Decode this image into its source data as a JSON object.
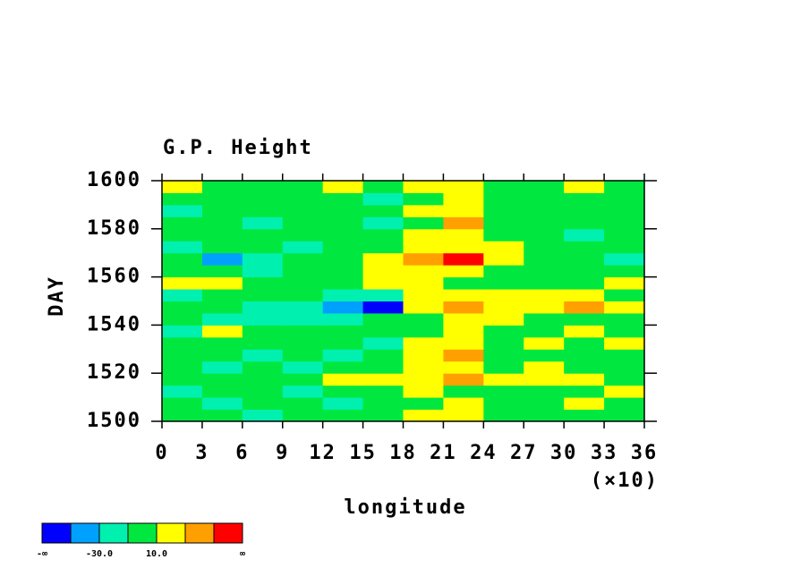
{
  "chart_data": {
    "type": "heatmap",
    "title": "G.P. Height",
    "x_label": "longitude",
    "y_label": "DAY",
    "x_multiplier": "(×10)",
    "xlim": [
      0,
      360
    ],
    "ylim": [
      1500,
      1600
    ],
    "xticks": [
      0,
      {
        "value": 30,
        "label": "3"
      },
      {
        "value": 60,
        "label": "6"
      },
      {
        "value": 90,
        "label": "9"
      },
      {
        "value": 120,
        "label": "12"
      },
      {
        "value": 150,
        "label": "15"
      },
      {
        "value": 180,
        "label": "18"
      },
      {
        "value": 210,
        "label": "21"
      },
      {
        "value": 240,
        "label": "24"
      },
      {
        "value": 270,
        "label": "27"
      },
      {
        "value": 300,
        "label": "30"
      },
      {
        "value": 330,
        "label": "33"
      },
      {
        "value": 360,
        "label": "36"
      }
    ],
    "yticks": [
      1500,
      1520,
      1540,
      1560,
      1580,
      1600
    ],
    "x": [
      15,
      45,
      75,
      105,
      135,
      165,
      195,
      225,
      255,
      285,
      315,
      345
    ],
    "y": [
      1502.5,
      1507.5,
      1512.5,
      1517.5,
      1522.5,
      1527.5,
      1532.5,
      1537.5,
      1542.5,
      1547.5,
      1552.5,
      1557.5,
      1562.5,
      1567.5,
      1572.5,
      1577.5,
      1582.5,
      1587.5,
      1592.5,
      1597.5
    ],
    "z": [
      [
        0,
        0,
        -20,
        0,
        0,
        0,
        20,
        20,
        0,
        0,
        0,
        0
      ],
      [
        0,
        -20,
        0,
        0,
        -20,
        0,
        0,
        20,
        0,
        0,
        20,
        0
      ],
      [
        -20,
        0,
        0,
        -20,
        0,
        0,
        20,
        0,
        0,
        0,
        0,
        20
      ],
      [
        0,
        0,
        0,
        0,
        20,
        20,
        20,
        40,
        20,
        20,
        20,
        0
      ],
      [
        0,
        -20,
        0,
        -20,
        0,
        0,
        20,
        20,
        0,
        20,
        0,
        0
      ],
      [
        0,
        0,
        -20,
        0,
        -20,
        0,
        20,
        40,
        0,
        0,
        0,
        0
      ],
      [
        0,
        0,
        0,
        0,
        0,
        -20,
        20,
        20,
        0,
        20,
        0,
        20
      ],
      [
        -20,
        20,
        0,
        0,
        0,
        0,
        0,
        20,
        0,
        0,
        20,
        0
      ],
      [
        0,
        -20,
        -20,
        -20,
        -20,
        0,
        0,
        20,
        20,
        0,
        0,
        0
      ],
      [
        0,
        0,
        -20,
        -20,
        -40,
        -60,
        20,
        40,
        20,
        20,
        40,
        20
      ],
      [
        -20,
        0,
        0,
        0,
        -20,
        -20,
        20,
        20,
        20,
        20,
        20,
        0
      ],
      [
        20,
        20,
        0,
        0,
        0,
        20,
        20,
        0,
        0,
        0,
        0,
        20
      ],
      [
        0,
        0,
        -20,
        0,
        0,
        20,
        20,
        20,
        0,
        0,
        0,
        0
      ],
      [
        0,
        -40,
        -20,
        0,
        0,
        20,
        40,
        60,
        20,
        0,
        0,
        -20
      ],
      [
        -20,
        0,
        0,
        -20,
        0,
        0,
        20,
        20,
        20,
        0,
        0,
        0
      ],
      [
        0,
        0,
        0,
        0,
        0,
        0,
        20,
        20,
        0,
        0,
        -20,
        0
      ],
      [
        0,
        0,
        -20,
        0,
        0,
        -20,
        0,
        40,
        0,
        0,
        0,
        0
      ],
      [
        -20,
        0,
        0,
        0,
        0,
        0,
        20,
        20,
        0,
        0,
        0,
        0
      ],
      [
        0,
        0,
        0,
        0,
        0,
        -20,
        0,
        20,
        0,
        0,
        0,
        0
      ],
      [
        20,
        0,
        0,
        0,
        20,
        0,
        20,
        20,
        0,
        0,
        20,
        0
      ]
    ],
    "levels": [
      -50,
      -30,
      -10,
      10,
      30,
      50
    ],
    "colors": [
      "#0000ff",
      "#00a0ff",
      "#00f0b0",
      "#00e840",
      "#ffff00",
      "#ffa000",
      "#ff0000"
    ],
    "colorbar_ticks": [
      {
        "value": -30,
        "label": "-30.0"
      },
      {
        "value": 10,
        "label": "10.0"
      }
    ],
    "colorbar_ends": [
      "-∞",
      "∞"
    ]
  }
}
